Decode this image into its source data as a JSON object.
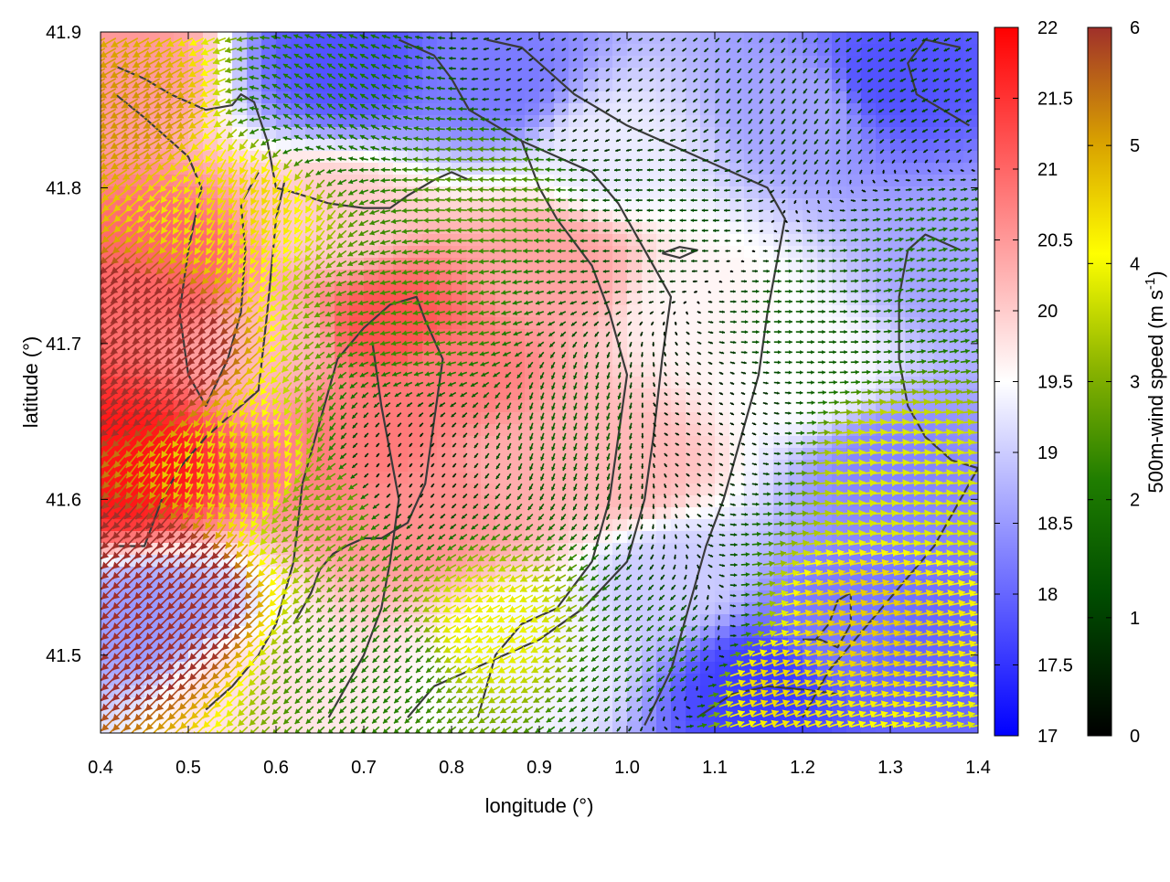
{
  "chart_data": {
    "type": "heatmap",
    "title": "",
    "xlabel": "longitude (°)",
    "ylabel": "latitude (°)",
    "xlim": [
      0.4,
      1.4
    ],
    "ylim": [
      41.45,
      41.9
    ],
    "xticks": [
      0.4,
      0.5,
      0.6,
      0.7,
      0.8,
      0.9,
      1.0,
      1.1,
      1.2,
      1.3,
      1.4
    ],
    "xtick_labels": [
      "0.4",
      "0.5",
      "0.6",
      "0.7",
      "0.8",
      "0.9",
      "1.0",
      "1.1",
      "1.2",
      "1.3",
      "1.4"
    ],
    "yticks": [
      41.5,
      41.6,
      41.7,
      41.8,
      41.9
    ],
    "ytick_labels": [
      "41.5",
      "41.6",
      "41.7",
      "41.8",
      "41.9"
    ],
    "grid": false,
    "temperature_colorbar": {
      "range": [
        17,
        22
      ],
      "ticks": [
        17,
        17.5,
        18,
        18.5,
        19,
        19.5,
        20,
        20.5,
        21,
        21.5,
        22
      ],
      "tick_labels": [
        "17",
        "17.5",
        "18",
        "18.5",
        "19",
        "19.5",
        "20",
        "20.5",
        "21",
        "21.5",
        "22"
      ],
      "colors": [
        "#0000ff",
        "#ffffff",
        "#ff0000"
      ]
    },
    "wind_colorbar": {
      "label": "500m-wind speed (m s",
      "label_sup": "-1",
      "label_end": ")",
      "range": [
        0,
        6
      ],
      "ticks": [
        0,
        1,
        2,
        3,
        4,
        5,
        6
      ],
      "tick_labels": [
        "0",
        "1",
        "2",
        "3",
        "4",
        "5",
        "6"
      ],
      "colors": [
        "#000000",
        "#006400",
        "#7fb000",
        "#ffff00",
        "#dda000",
        "#a52a2a"
      ]
    },
    "temperature_field": [
      {
        "lon": 0.42,
        "lat": 41.88,
        "t": 20.5
      },
      {
        "lon": 0.48,
        "lat": 41.75,
        "t": 21.0
      },
      {
        "lon": 0.43,
        "lat": 41.62,
        "t": 21.8
      },
      {
        "lon": 0.46,
        "lat": 41.52,
        "t": 18.5
      },
      {
        "lon": 0.55,
        "lat": 41.48,
        "t": 19.8
      },
      {
        "lon": 0.6,
        "lat": 41.7,
        "t": 20.2
      },
      {
        "lon": 0.73,
        "lat": 41.71,
        "t": 21.2
      },
      {
        "lon": 0.72,
        "lat": 41.64,
        "t": 20.8
      },
      {
        "lon": 0.8,
        "lat": 41.68,
        "t": 20.8
      },
      {
        "lon": 0.66,
        "lat": 41.78,
        "t": 20.0
      },
      {
        "lon": 0.68,
        "lat": 41.88,
        "t": 17.8
      },
      {
        "lon": 0.85,
        "lat": 41.87,
        "t": 18.2
      },
      {
        "lon": 0.78,
        "lat": 41.6,
        "t": 20.6
      },
      {
        "lon": 0.88,
        "lat": 41.62,
        "t": 20.3
      },
      {
        "lon": 0.92,
        "lat": 41.75,
        "t": 20.4
      },
      {
        "lon": 0.98,
        "lat": 41.82,
        "t": 19.3
      },
      {
        "lon": 1.0,
        "lat": 41.62,
        "t": 20.2
      },
      {
        "lon": 0.9,
        "lat": 41.5,
        "t": 19.4
      },
      {
        "lon": 1.05,
        "lat": 41.55,
        "t": 19.0
      },
      {
        "lon": 1.08,
        "lat": 41.72,
        "t": 19.6
      },
      {
        "lon": 1.2,
        "lat": 41.85,
        "t": 18.6
      },
      {
        "lon": 1.3,
        "lat": 41.87,
        "t": 17.8
      },
      {
        "lon": 1.2,
        "lat": 41.68,
        "t": 19.5
      },
      {
        "lon": 1.3,
        "lat": 41.62,
        "t": 18.3
      },
      {
        "lon": 1.15,
        "lat": 41.48,
        "t": 17.6
      },
      {
        "lon": 1.25,
        "lat": 41.52,
        "t": 18.2
      },
      {
        "lon": 1.35,
        "lat": 41.5,
        "t": 18.0
      },
      {
        "lon": 1.38,
        "lat": 41.75,
        "t": 18.6
      }
    ],
    "wind_field": [
      {
        "lon": 0.45,
        "lat": 41.85,
        "u": -4.5,
        "v": -2.5
      },
      {
        "lon": 0.45,
        "lat": 41.7,
        "u": -5.5,
        "v": -4.0
      },
      {
        "lon": 0.48,
        "lat": 41.55,
        "u": -5.0,
        "v": -5.0
      },
      {
        "lon": 0.57,
        "lat": 41.8,
        "u": -2.0,
        "v": -4.0
      },
      {
        "lon": 0.58,
        "lat": 41.62,
        "u": -1.5,
        "v": -4.3
      },
      {
        "lon": 0.65,
        "lat": 41.85,
        "u": -1.8,
        "v": 1.2
      },
      {
        "lon": 0.66,
        "lat": 41.6,
        "u": -2.5,
        "v": -1.5
      },
      {
        "lon": 0.78,
        "lat": 41.72,
        "u": -2.4,
        "v": -0.5
      },
      {
        "lon": 0.74,
        "lat": 41.62,
        "u": -0.3,
        "v": -0.4
      },
      {
        "lon": 0.72,
        "lat": 41.5,
        "u": -1.5,
        "v": -1.5
      },
      {
        "lon": 0.85,
        "lat": 41.8,
        "u": -2.6,
        "v": 0.2
      },
      {
        "lon": 0.85,
        "lat": 41.52,
        "u": -3.5,
        "v": -1.8
      },
      {
        "lon": 0.95,
        "lat": 41.65,
        "u": -0.5,
        "v": -1.5
      },
      {
        "lon": 0.95,
        "lat": 41.86,
        "u": -0.4,
        "v": -0.3
      },
      {
        "lon": 1.05,
        "lat": 41.78,
        "u": -1.2,
        "v": 0.0
      },
      {
        "lon": 1.08,
        "lat": 41.65,
        "u": 0.4,
        "v": -0.2
      },
      {
        "lon": 1.05,
        "lat": 41.5,
        "u": -1.5,
        "v": -1.2
      },
      {
        "lon": 1.2,
        "lat": 41.85,
        "u": -0.6,
        "v": -0.8
      },
      {
        "lon": 1.2,
        "lat": 41.72,
        "u": 1.5,
        "v": 0.0
      },
      {
        "lon": 1.3,
        "lat": 41.62,
        "u": 3.8,
        "v": 0.4
      },
      {
        "lon": 1.25,
        "lat": 41.52,
        "u": 4.5,
        "v": 1.0
      },
      {
        "lon": 1.15,
        "lat": 41.48,
        "u": 4.2,
        "v": 1.5
      },
      {
        "lon": 1.35,
        "lat": 41.75,
        "u": 2.0,
        "v": 0.5
      },
      {
        "lon": 1.35,
        "lat": 41.87,
        "u": -1.0,
        "v": -0.5
      }
    ],
    "contours": [
      {
        "points": [
          [
            0.417,
            41.878
          ],
          [
            0.45,
            41.87
          ],
          [
            0.48,
            41.86
          ],
          [
            0.5,
            41.855
          ],
          [
            0.52,
            41.85
          ],
          [
            0.55,
            41.853
          ],
          [
            0.56,
            41.86
          ],
          [
            0.575,
            41.855
          ],
          [
            0.59,
            41.83
          ],
          [
            0.6,
            41.8
          ],
          [
            0.62,
            41.797
          ],
          [
            0.66,
            41.79
          ],
          [
            0.7,
            41.787
          ],
          [
            0.73,
            41.787
          ],
          [
            0.75,
            41.795
          ],
          [
            0.78,
            41.805
          ],
          [
            0.8,
            41.81
          ],
          [
            0.82,
            41.805
          ]
        ]
      },
      {
        "points": [
          [
            0.417,
            41.86
          ],
          [
            0.45,
            41.845
          ],
          [
            0.48,
            41.83
          ],
          [
            0.5,
            41.82
          ],
          [
            0.515,
            41.8
          ],
          [
            0.5,
            41.76
          ],
          [
            0.49,
            41.72
          ],
          [
            0.5,
            41.68
          ],
          [
            0.52,
            41.66
          ],
          [
            0.545,
            41.69
          ],
          [
            0.56,
            41.72
          ],
          [
            0.565,
            41.76
          ],
          [
            0.56,
            41.79
          ],
          [
            0.58,
            41.81
          ]
        ]
      },
      {
        "points": [
          [
            0.42,
            41.57
          ],
          [
            0.45,
            41.57
          ],
          [
            0.47,
            41.6
          ],
          [
            0.49,
            41.62
          ],
          [
            0.52,
            41.64
          ],
          [
            0.55,
            41.655
          ],
          [
            0.58,
            41.67
          ],
          [
            0.59,
            41.72
          ],
          [
            0.6,
            41.78
          ],
          [
            0.61,
            41.805
          ]
        ]
      },
      {
        "points": [
          [
            0.52,
            41.465
          ],
          [
            0.55,
            41.48
          ],
          [
            0.58,
            41.5
          ],
          [
            0.6,
            41.52
          ],
          [
            0.62,
            41.56
          ],
          [
            0.63,
            41.61
          ],
          [
            0.65,
            41.65
          ],
          [
            0.67,
            41.69
          ],
          [
            0.7,
            41.71
          ],
          [
            0.73,
            41.725
          ],
          [
            0.76,
            41.73
          ],
          [
            0.77,
            41.715
          ],
          [
            0.79,
            41.69
          ],
          [
            0.78,
            41.65
          ],
          [
            0.77,
            41.61
          ],
          [
            0.75,
            41.585
          ],
          [
            0.72,
            41.575
          ],
          [
            0.7,
            41.575
          ],
          [
            0.68,
            41.57
          ],
          [
            0.665,
            41.565
          ],
          [
            0.65,
            41.555
          ],
          [
            0.64,
            41.54
          ],
          [
            0.62,
            41.52
          ]
        ]
      },
      {
        "points": [
          [
            0.66,
            41.46
          ],
          [
            0.7,
            41.5
          ],
          [
            0.72,
            41.53
          ],
          [
            0.73,
            41.56
          ],
          [
            0.74,
            41.6
          ],
          [
            0.73,
            41.63
          ],
          [
            0.72,
            41.66
          ],
          [
            0.71,
            41.7
          ]
        ]
      },
      {
        "points": [
          [
            0.75,
            41.46
          ],
          [
            0.78,
            41.48
          ],
          [
            0.82,
            41.49
          ],
          [
            0.86,
            41.5
          ],
          [
            0.9,
            41.51
          ],
          [
            0.95,
            41.53
          ],
          [
            1.0,
            41.56
          ],
          [
            1.02,
            41.6
          ],
          [
            1.03,
            41.64
          ],
          [
            1.04,
            41.69
          ],
          [
            1.05,
            41.73
          ],
          [
            1.02,
            41.76
          ],
          [
            0.99,
            41.79
          ],
          [
            0.96,
            41.81
          ],
          [
            0.92,
            41.82
          ],
          [
            0.88,
            41.83
          ],
          [
            0.85,
            41.84
          ],
          [
            0.82,
            41.85
          ],
          [
            0.8,
            41.87
          ],
          [
            0.78,
            41.885
          ],
          [
            0.74,
            41.895
          ]
        ]
      },
      {
        "points": [
          [
            0.83,
            41.46
          ],
          [
            0.85,
            41.5
          ],
          [
            0.88,
            41.52
          ],
          [
            0.92,
            41.53
          ],
          [
            0.96,
            41.56
          ],
          [
            0.98,
            41.6
          ],
          [
            0.99,
            41.64
          ],
          [
            1.0,
            41.68
          ],
          [
            0.98,
            41.72
          ],
          [
            0.96,
            41.75
          ],
          [
            0.92,
            41.78
          ],
          [
            0.9,
            41.8
          ],
          [
            0.88,
            41.83
          ]
        ]
      },
      {
        "points": [
          [
            1.02,
            41.455
          ],
          [
            1.05,
            41.49
          ],
          [
            1.07,
            41.53
          ],
          [
            1.09,
            41.57
          ],
          [
            1.11,
            41.6
          ],
          [
            1.13,
            41.64
          ],
          [
            1.15,
            41.68
          ],
          [
            1.16,
            41.72
          ],
          [
            1.17,
            41.75
          ],
          [
            1.18,
            41.78
          ],
          [
            1.16,
            41.8
          ],
          [
            1.12,
            41.81
          ],
          [
            1.08,
            41.82
          ],
          [
            1.04,
            41.83
          ],
          [
            1.0,
            41.84
          ],
          [
            0.97,
            41.85
          ],
          [
            0.94,
            41.86
          ],
          [
            0.91,
            41.875
          ],
          [
            0.88,
            41.89
          ],
          [
            0.84,
            41.895
          ]
        ]
      },
      {
        "points": [
          [
            1.2,
            41.46
          ],
          [
            1.23,
            41.49
          ],
          [
            1.26,
            41.51
          ],
          [
            1.29,
            41.53
          ],
          [
            1.32,
            41.55
          ],
          [
            1.35,
            41.57
          ],
          [
            1.38,
            41.6
          ],
          [
            1.4,
            41.62
          ]
        ]
      },
      {
        "points": [
          [
            1.08,
            41.46
          ],
          [
            1.12,
            41.475
          ],
          [
            1.16,
            41.48
          ],
          [
            1.2,
            41.478
          ],
          [
            1.24,
            41.475
          ]
        ]
      },
      {
        "points": [
          [
            1.2,
            41.51
          ],
          [
            1.22,
            41.51
          ],
          [
            1.24,
            41.505
          ],
          [
            1.255,
            41.52
          ],
          [
            1.255,
            41.54
          ],
          [
            1.24,
            41.535
          ],
          [
            1.23,
            41.52
          ],
          [
            1.215,
            41.51
          ]
        ]
      },
      {
        "points": [
          [
            1.04,
            41.758
          ],
          [
            1.06,
            41.762
          ],
          [
            1.08,
            41.76
          ],
          [
            1.06,
            41.755
          ],
          [
            1.04,
            41.758
          ]
        ]
      },
      {
        "points": [
          [
            1.38,
            41.76
          ],
          [
            1.34,
            41.77
          ],
          [
            1.32,
            41.76
          ],
          [
            1.31,
            41.73
          ],
          [
            1.31,
            41.69
          ],
          [
            1.32,
            41.66
          ],
          [
            1.34,
            41.64
          ],
          [
            1.37,
            41.625
          ],
          [
            1.4,
            41.62
          ]
        ]
      },
      {
        "points": [
          [
            1.38,
            41.89
          ],
          [
            1.34,
            41.895
          ],
          [
            1.32,
            41.88
          ],
          [
            1.33,
            41.86
          ],
          [
            1.36,
            41.85
          ],
          [
            1.39,
            41.84
          ]
        ]
      }
    ]
  }
}
